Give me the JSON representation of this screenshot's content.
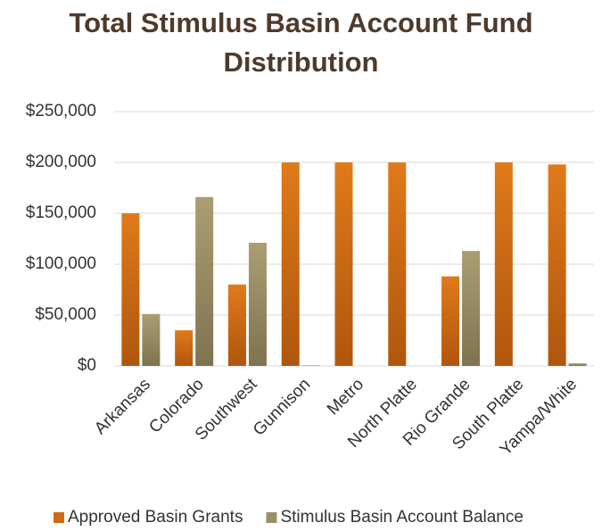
{
  "chart_data": {
    "type": "bar",
    "title": "Total Stimulus Basin Account Fund Distribution",
    "categories": [
      "Arkansas",
      "Colorado",
      "Southwest",
      "Gunnison",
      "Metro",
      "North Platte",
      "Rio Grande",
      "South Platte",
      "Yampa/White"
    ],
    "series": [
      {
        "name": "Approved Basin Grants",
        "color": "#d06a14",
        "values": [
          150000,
          35000,
          80000,
          200000,
          200000,
          200000,
          88000,
          200000,
          198000
        ]
      },
      {
        "name": "Stimulus Basin Account Balance",
        "color": "#9c8f63",
        "values": [
          51000,
          166000,
          121000,
          500,
          0,
          0,
          113000,
          0,
          2500
        ]
      }
    ],
    "ylim": [
      0,
      250000
    ],
    "yticks": [
      {
        "value": 0,
        "label": "$0"
      },
      {
        "value": 50000,
        "label": "$50,000"
      },
      {
        "value": 100000,
        "label": "$100,000"
      },
      {
        "value": 150000,
        "label": "$150,000"
      },
      {
        "value": 200000,
        "label": "$200,000"
      },
      {
        "value": 250000,
        "label": "$250,000"
      }
    ],
    "grid": true,
    "legend": "bottom"
  }
}
